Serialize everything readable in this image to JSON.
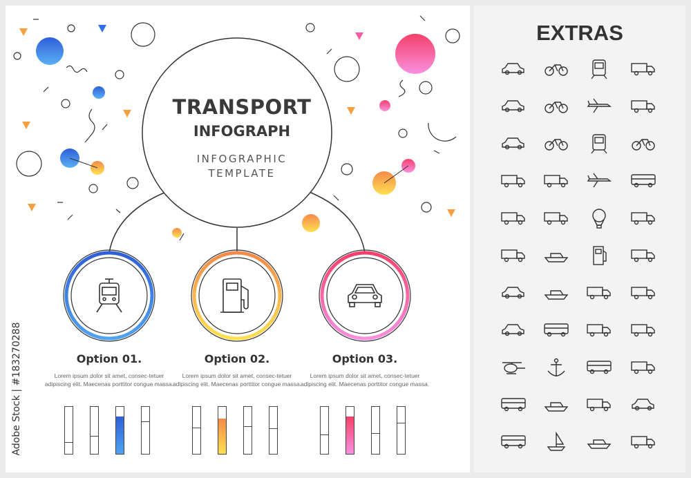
{
  "title": {
    "line1": "TRANSPORT",
    "line2": "INFOGRAPH",
    "subtitle_line1": "INFOGRAPHIC",
    "subtitle_line2": "TEMPLATE"
  },
  "options": [
    {
      "title": "Option 01.",
      "text": "Lorem ipsum dolor sit amet, consec-tetuer adipiscing elit. Maecenas porttitor congue massa.",
      "icon": "tram-icon",
      "color_start": "#2f5fd8",
      "color_end": "#4fa3f0",
      "levels": [
        0.24,
        0.37,
        0.8,
        0.67
      ],
      "filled_index": 2
    },
    {
      "title": "Option 02.",
      "text": "Lorem ipsum dolor sit amet, consec-tetuer adipiscing elit. Maecenas porttitor congue massa.",
      "icon": "fuel-pump-icon",
      "color_start": "#f58a4a",
      "color_end": "#ffe052",
      "levels": [
        0.54,
        0.75,
        0.58,
        0.53
      ],
      "filled_index": 1
    },
    {
      "title": "Option 03.",
      "text": "Lorem ipsum dolor sit amet, consec-tetuer adipiscing elit. Maecenas porttitor congue massa.",
      "icon": "car-icon",
      "color_start": "#f5406a",
      "color_end": "#f990e0",
      "levels": [
        0.39,
        0.8,
        0.43,
        0.64
      ],
      "filled_index": 1
    }
  ],
  "extras": {
    "title": "EXTRAS",
    "icons": [
      "convertible",
      "bicycle",
      "train",
      "tractor",
      "car",
      "scooter",
      "airplane",
      "van",
      "minivan",
      "atv",
      "tram",
      "cyclist",
      "tanker-truck",
      "bulldozer",
      "drone",
      "camper",
      "box-truck",
      "excavator",
      "hot-air-balloon",
      "truck",
      "fire-truck",
      "speedboat",
      "fuel-pump",
      "dump-truck",
      "hatchback",
      "jet-ski",
      "semi-truck",
      "concrete-mixer",
      "pickup",
      "bus",
      "ambulance",
      "car-carrier",
      "helicopter",
      "anchor",
      "trolleybus",
      "snowplow",
      "bus",
      "cruise-ship",
      "tanker-truck",
      "car",
      "minibus",
      "sailboat",
      "ship",
      "car-transporter"
    ]
  },
  "watermark": "Adobe Stock | #183270288"
}
